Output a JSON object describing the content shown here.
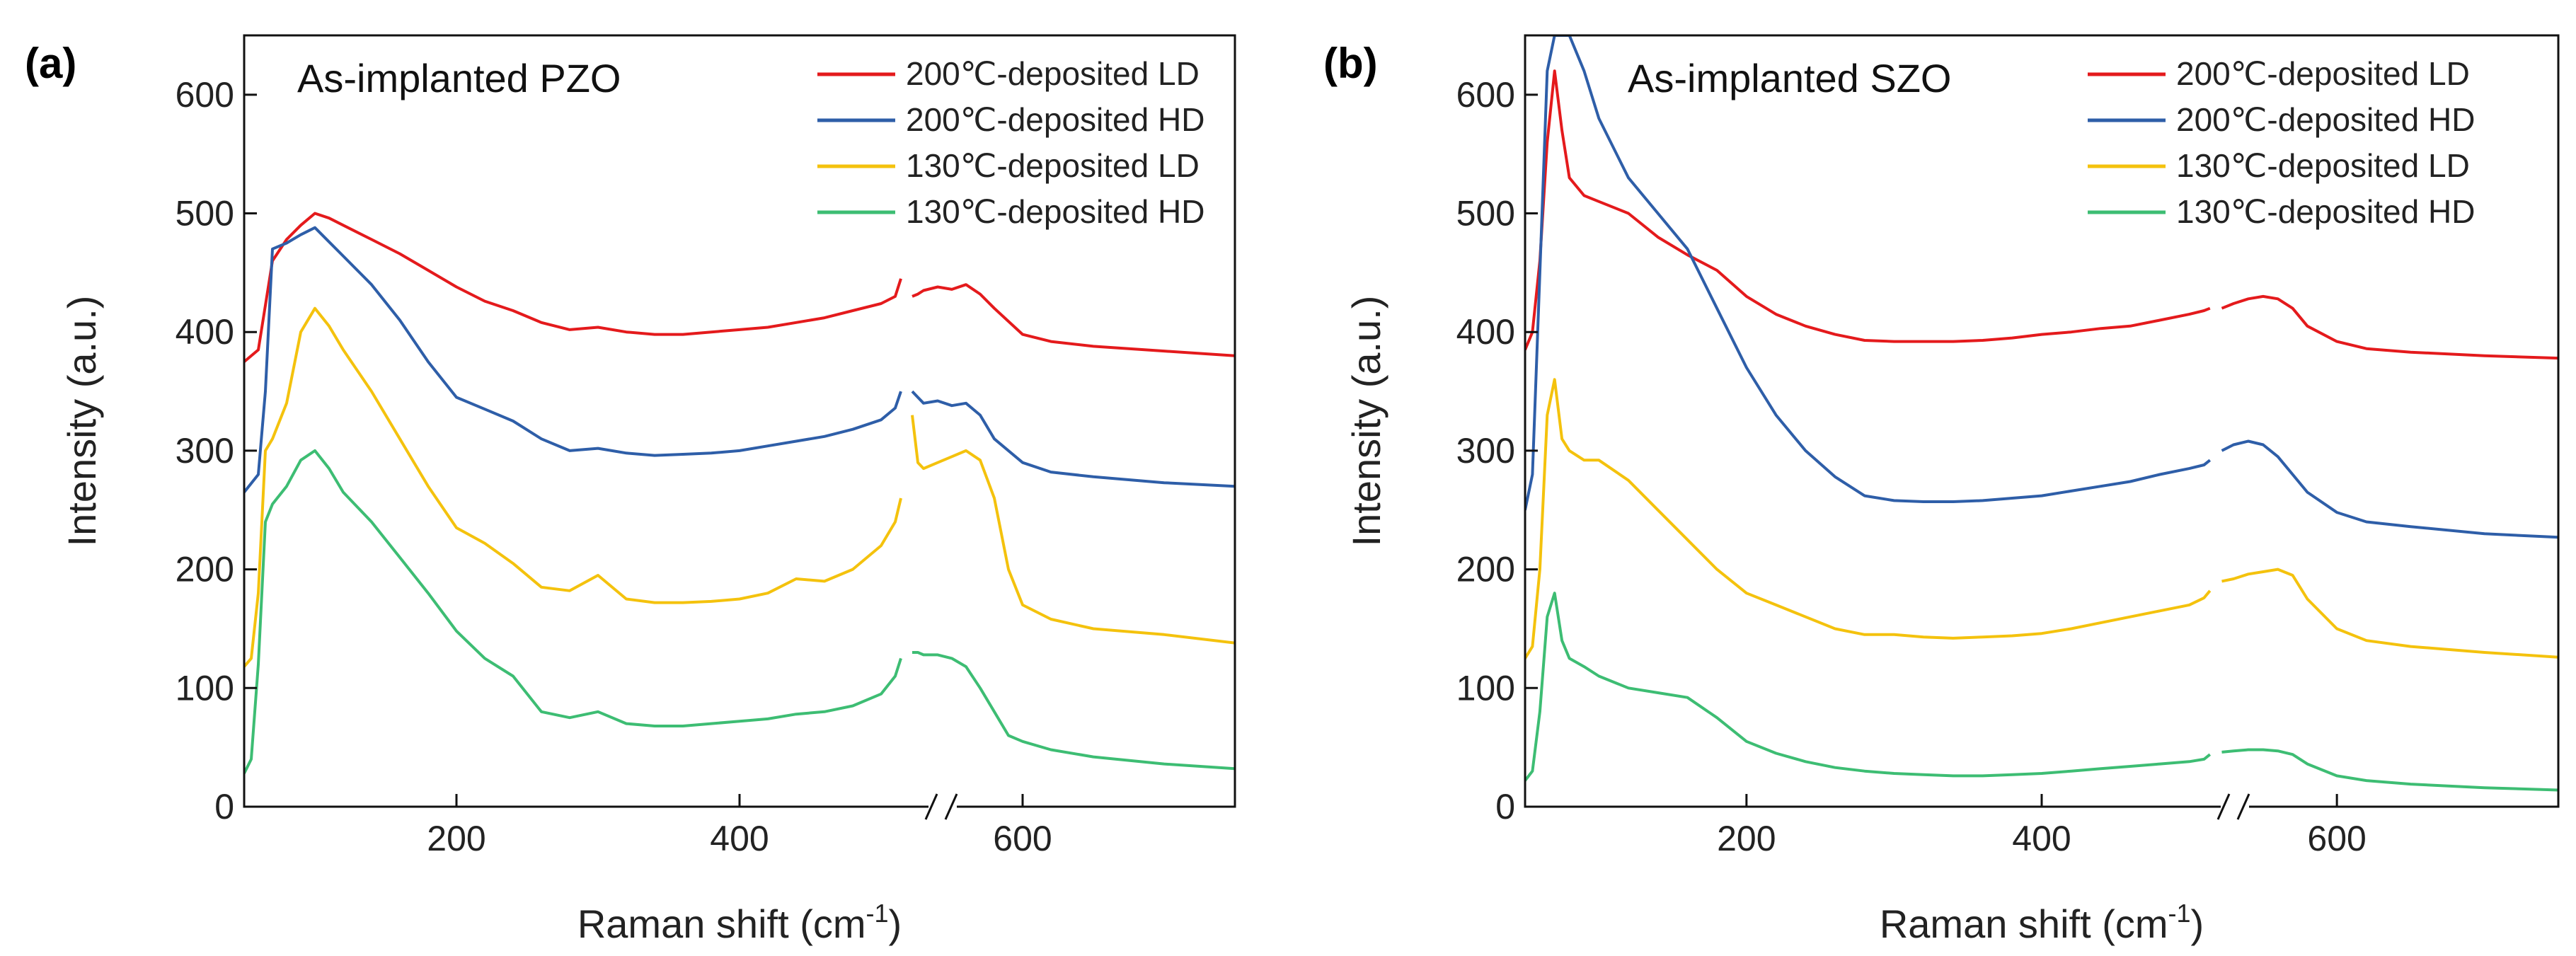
{
  "chart_data": [
    {
      "type": "line",
      "panel_label": "(a)",
      "title": "As-implanted PZO",
      "xlabel": "Raman shift (cm",
      "xlabel_sup": "-1",
      "xlabel_close": ")",
      "ylabel": "Intensity (a.u.)",
      "xlim": [
        50,
        750
      ],
      "ylim": [
        0,
        650
      ],
      "axis_break_at": 520,
      "xticks": [
        200,
        400,
        600
      ],
      "yticks": [
        0,
        100,
        200,
        300,
        400,
        500,
        600
      ],
      "legend_position": "top-right",
      "series": [
        {
          "name": "200℃-deposited LD",
          "color": "#e41a1c",
          "x": [
            50,
            60,
            70,
            80,
            90,
            100,
            110,
            120,
            140,
            160,
            180,
            200,
            220,
            240,
            260,
            280,
            300,
            320,
            340,
            360,
            380,
            400,
            420,
            440,
            460,
            480,
            500,
            510,
            514,
            518,
            522,
            526,
            530,
            540,
            550,
            560,
            570,
            580,
            600,
            620,
            650,
            700,
            750
          ],
          "y": [
            375,
            385,
            460,
            478,
            490,
            500,
            496,
            490,
            478,
            466,
            452,
            438,
            426,
            418,
            408,
            402,
            404,
            400,
            398,
            398,
            400,
            402,
            404,
            408,
            412,
            418,
            424,
            430,
            445,
            460,
            430,
            432,
            435,
            438,
            436,
            440,
            432,
            420,
            398,
            392,
            388,
            384,
            380
          ]
        },
        {
          "name": "200℃-deposited HD",
          "color": "#2e5ea8",
          "x": [
            50,
            60,
            65,
            70,
            80,
            90,
            100,
            110,
            120,
            140,
            160,
            180,
            200,
            220,
            240,
            260,
            280,
            300,
            320,
            340,
            360,
            380,
            400,
            420,
            440,
            460,
            480,
            500,
            510,
            514,
            518,
            522,
            526,
            530,
            540,
            550,
            560,
            570,
            580,
            600,
            620,
            650,
            700,
            750
          ],
          "y": [
            265,
            280,
            350,
            470,
            475,
            482,
            488,
            476,
            464,
            440,
            410,
            375,
            345,
            335,
            325,
            310,
            300,
            302,
            298,
            296,
            297,
            298,
            300,
            304,
            308,
            312,
            318,
            326,
            336,
            350,
            330,
            350,
            345,
            340,
            342,
            338,
            340,
            330,
            310,
            290,
            282,
            278,
            273,
            270
          ]
        },
        {
          "name": "130℃-deposited LD",
          "color": "#f4c20d",
          "x": [
            50,
            55,
            60,
            65,
            70,
            80,
            90,
            100,
            110,
            120,
            140,
            160,
            180,
            200,
            220,
            240,
            260,
            280,
            300,
            320,
            340,
            360,
            380,
            400,
            420,
            440,
            460,
            480,
            500,
            510,
            514,
            518,
            522,
            526,
            530,
            540,
            550,
            560,
            570,
            580,
            590,
            600,
            620,
            650,
            700,
            750
          ],
          "y": [
            118,
            125,
            180,
            300,
            310,
            340,
            400,
            420,
            405,
            385,
            350,
            310,
            270,
            235,
            222,
            205,
            185,
            182,
            195,
            175,
            172,
            172,
            173,
            175,
            180,
            192,
            190,
            200,
            220,
            240,
            260,
            290,
            330,
            290,
            285,
            290,
            295,
            300,
            292,
            260,
            200,
            170,
            158,
            150,
            145,
            138
          ]
        },
        {
          "name": "130℃-deposited HD",
          "color": "#3dbd73",
          "x": [
            50,
            55,
            60,
            65,
            70,
            80,
            90,
            100,
            110,
            120,
            140,
            160,
            180,
            200,
            220,
            240,
            260,
            280,
            300,
            320,
            340,
            360,
            380,
            400,
            420,
            440,
            460,
            480,
            500,
            510,
            514,
            518,
            522,
            526,
            530,
            540,
            550,
            560,
            570,
            580,
            590,
            600,
            620,
            650,
            700,
            750
          ],
          "y": [
            28,
            40,
            120,
            240,
            255,
            270,
            292,
            300,
            285,
            265,
            240,
            210,
            180,
            148,
            125,
            110,
            80,
            75,
            80,
            70,
            68,
            68,
            70,
            72,
            74,
            78,
            80,
            85,
            95,
            110,
            125,
            155,
            130,
            130,
            128,
            128,
            125,
            118,
            100,
            80,
            60,
            55,
            48,
            42,
            36,
            32
          ]
        }
      ]
    },
    {
      "type": "line",
      "panel_label": "(b)",
      "title": "As-implanted SZO",
      "xlabel": "Raman shift (cm",
      "xlabel_sup": "-1",
      "xlabel_close": ")",
      "ylabel": "Intensity (a.u.)",
      "xlim": [
        50,
        750
      ],
      "ylim": [
        0,
        650
      ],
      "axis_break_at": 520,
      "xticks": [
        200,
        400,
        600
      ],
      "yticks": [
        0,
        100,
        200,
        300,
        400,
        500,
        600
      ],
      "legend_position": "top-right",
      "series": [
        {
          "name": "200℃-deposited LD",
          "color": "#e41a1c",
          "x": [
            50,
            55,
            60,
            65,
            70,
            75,
            80,
            90,
            100,
            120,
            140,
            160,
            180,
            200,
            220,
            240,
            260,
            280,
            300,
            320,
            340,
            360,
            380,
            400,
            420,
            440,
            460,
            480,
            500,
            510,
            514,
            522,
            530,
            540,
            550,
            560,
            570,
            580,
            600,
            620,
            650,
            700,
            750
          ],
          "y": [
            385,
            400,
            460,
            560,
            620,
            570,
            530,
            515,
            510,
            500,
            480,
            465,
            452,
            430,
            415,
            405,
            398,
            393,
            392,
            392,
            392,
            393,
            395,
            398,
            400,
            403,
            405,
            410,
            415,
            418,
            420,
            420,
            424,
            428,
            430,
            428,
            420,
            405,
            392,
            386,
            383,
            380,
            378
          ]
        },
        {
          "name": "200℃-deposited HD",
          "color": "#2e5ea8",
          "x": [
            50,
            55,
            60,
            65,
            70,
            75,
            80,
            90,
            100,
            120,
            140,
            160,
            180,
            200,
            220,
            240,
            260,
            280,
            300,
            320,
            340,
            360,
            380,
            400,
            420,
            440,
            460,
            480,
            500,
            510,
            514,
            522,
            530,
            540,
            550,
            560,
            570,
            580,
            600,
            620,
            650,
            700,
            750
          ],
          "y": [
            250,
            280,
            450,
            620,
            650,
            650,
            650,
            620,
            580,
            530,
            500,
            470,
            420,
            370,
            330,
            300,
            278,
            262,
            258,
            257,
            257,
            258,
            260,
            262,
            266,
            270,
            274,
            280,
            285,
            288,
            292,
            300,
            305,
            308,
            305,
            295,
            280,
            265,
            248,
            240,
            236,
            230,
            227
          ]
        },
        {
          "name": "130℃-deposited LD",
          "color": "#f4c20d",
          "x": [
            50,
            55,
            60,
            65,
            70,
            75,
            80,
            90,
            100,
            120,
            140,
            160,
            180,
            200,
            220,
            240,
            260,
            280,
            300,
            320,
            340,
            360,
            380,
            400,
            420,
            440,
            460,
            480,
            500,
            510,
            514,
            522,
            530,
            540,
            550,
            560,
            570,
            580,
            600,
            620,
            650,
            700,
            750
          ],
          "y": [
            125,
            135,
            200,
            330,
            360,
            310,
            300,
            292,
            292,
            275,
            250,
            225,
            200,
            180,
            170,
            160,
            150,
            145,
            145,
            143,
            142,
            143,
            144,
            146,
            150,
            155,
            160,
            165,
            170,
            176,
            182,
            190,
            192,
            196,
            198,
            200,
            195,
            175,
            150,
            140,
            135,
            130,
            126
          ]
        },
        {
          "name": "130℃-deposited HD",
          "color": "#3dbd73",
          "x": [
            50,
            55,
            60,
            65,
            70,
            75,
            80,
            90,
            100,
            120,
            140,
            160,
            180,
            200,
            220,
            240,
            260,
            280,
            300,
            320,
            340,
            360,
            380,
            400,
            420,
            440,
            460,
            480,
            500,
            510,
            514,
            522,
            530,
            540,
            550,
            560,
            570,
            580,
            600,
            620,
            650,
            700,
            750
          ],
          "y": [
            22,
            30,
            80,
            160,
            180,
            140,
            125,
            118,
            110,
            100,
            96,
            92,
            75,
            55,
            45,
            38,
            33,
            30,
            28,
            27,
            26,
            26,
            27,
            28,
            30,
            32,
            34,
            36,
            38,
            40,
            44,
            46,
            47,
            48,
            48,
            47,
            44,
            36,
            26,
            22,
            19,
            16,
            14
          ]
        }
      ]
    }
  ]
}
